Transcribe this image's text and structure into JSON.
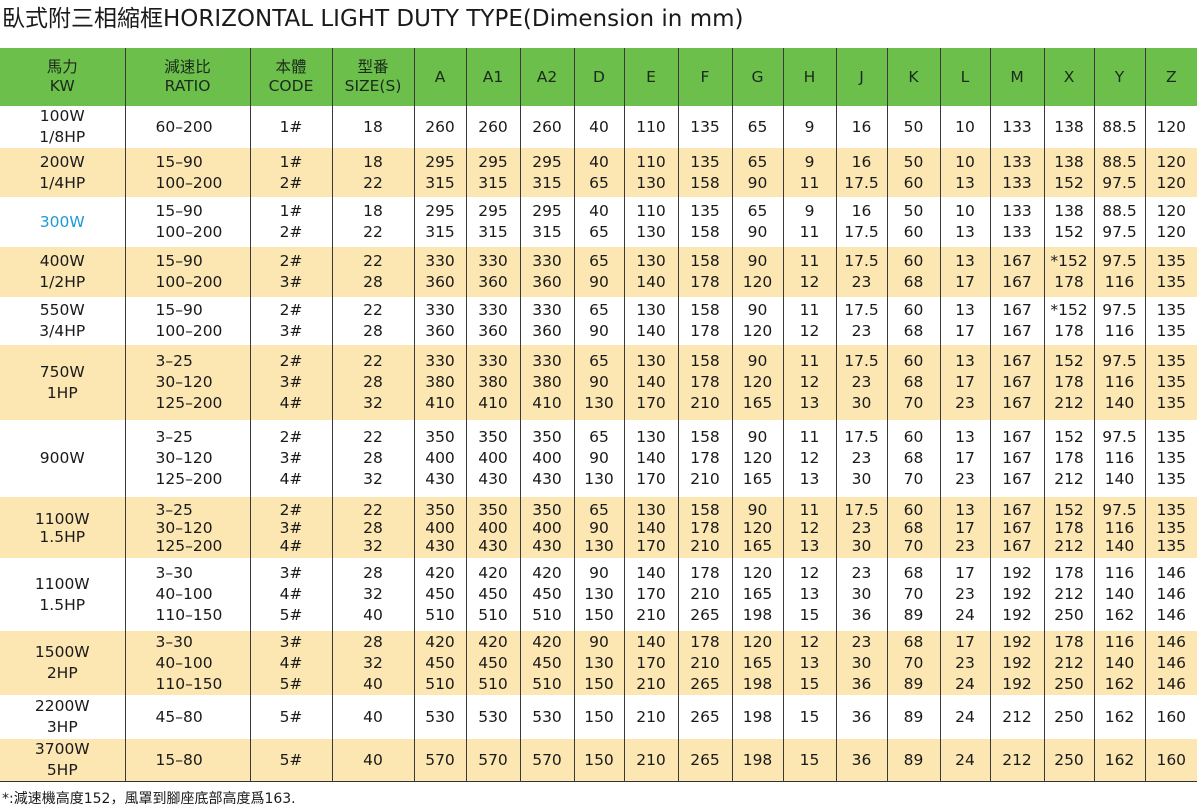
{
  "title": "臥式附三相縮框HORIZONTAL LIGHT DUTY TYPE(Dimension in mm)",
  "table": {
    "header": [
      [
        "馬力",
        "KW"
      ],
      [
        "減速比",
        "RATIO"
      ],
      [
        "本體",
        "CODE"
      ],
      [
        "型番",
        "SIZE(S)"
      ],
      [
        "A"
      ],
      [
        "A1"
      ],
      [
        "A2"
      ],
      [
        "D"
      ],
      [
        "E"
      ],
      [
        "F"
      ],
      [
        "G"
      ],
      [
        "H"
      ],
      [
        "J"
      ],
      [
        "K"
      ],
      [
        "L"
      ],
      [
        "M"
      ],
      [
        "X"
      ],
      [
        "Y"
      ],
      [
        "Z"
      ]
    ],
    "rows": [
      [
        [
          "100W",
          "1/8HP"
        ],
        [
          "60–200"
        ],
        [
          "1#"
        ],
        [
          "18"
        ],
        [
          "260"
        ],
        [
          "260"
        ],
        [
          "260"
        ],
        [
          "40"
        ],
        [
          "110"
        ],
        [
          "135"
        ],
        [
          "65"
        ],
        [
          "9"
        ],
        [
          "16"
        ],
        [
          "50"
        ],
        [
          "10"
        ],
        [
          "133"
        ],
        [
          "138"
        ],
        [
          "88.5"
        ],
        [
          "120"
        ]
      ],
      [
        [
          "200W",
          "1/4HP"
        ],
        [
          "15–90",
          "100–200"
        ],
        [
          "1#",
          "2#"
        ],
        [
          "18",
          "22"
        ],
        [
          "295",
          "315"
        ],
        [
          "295",
          "315"
        ],
        [
          "295",
          "315"
        ],
        [
          "40",
          "65"
        ],
        [
          "110",
          "130"
        ],
        [
          "135",
          "158"
        ],
        [
          "65",
          "90"
        ],
        [
          "9",
          "11"
        ],
        [
          "16",
          "17.5"
        ],
        [
          "50",
          "60"
        ],
        [
          "10",
          "13"
        ],
        [
          "133",
          "133"
        ],
        [
          "138",
          "152"
        ],
        [
          "88.5",
          "97.5"
        ],
        [
          "120",
          "120"
        ]
      ],
      [
        [
          "300W"
        ],
        [
          "15–90",
          "100–200"
        ],
        [
          "1#",
          "2#"
        ],
        [
          "18",
          "22"
        ],
        [
          "295",
          "315"
        ],
        [
          "295",
          "315"
        ],
        [
          "295",
          "315"
        ],
        [
          "40",
          "65"
        ],
        [
          "110",
          "130"
        ],
        [
          "135",
          "158"
        ],
        [
          "65",
          "90"
        ],
        [
          "9",
          "11"
        ],
        [
          "16",
          "17.5"
        ],
        [
          "50",
          "60"
        ],
        [
          "10",
          "13"
        ],
        [
          "133",
          "133"
        ],
        [
          "138",
          "152"
        ],
        [
          "88.5",
          "97.5"
        ],
        [
          "120",
          "120"
        ]
      ],
      [
        [
          "400W",
          "1/2HP"
        ],
        [
          "15–90",
          "100–200"
        ],
        [
          "2#",
          "3#"
        ],
        [
          "22",
          "28"
        ],
        [
          "330",
          "360"
        ],
        [
          "330",
          "360"
        ],
        [
          "330",
          "360"
        ],
        [
          "65",
          "90"
        ],
        [
          "130",
          "140"
        ],
        [
          "158",
          "178"
        ],
        [
          "90",
          "120"
        ],
        [
          "11",
          "12"
        ],
        [
          "17.5",
          "23"
        ],
        [
          "60",
          "68"
        ],
        [
          "13",
          "17"
        ],
        [
          "167",
          "167"
        ],
        [
          "*152",
          "178"
        ],
        [
          "97.5",
          "116"
        ],
        [
          "135",
          "135"
        ]
      ],
      [
        [
          "550W",
          "3/4HP"
        ],
        [
          "15–90",
          "100–200"
        ],
        [
          "2#",
          "3#"
        ],
        [
          "22",
          "28"
        ],
        [
          "330",
          "360"
        ],
        [
          "330",
          "360"
        ],
        [
          "330",
          "360"
        ],
        [
          "65",
          "90"
        ],
        [
          "130",
          "140"
        ],
        [
          "158",
          "178"
        ],
        [
          "90",
          "120"
        ],
        [
          "11",
          "12"
        ],
        [
          "17.5",
          "23"
        ],
        [
          "60",
          "68"
        ],
        [
          "13",
          "17"
        ],
        [
          "167",
          "167"
        ],
        [
          "*152",
          "178"
        ],
        [
          "97.5",
          "116"
        ],
        [
          "135",
          "135"
        ]
      ],
      [
        [
          "750W",
          "1HP"
        ],
        [
          "3–25",
          "30–120",
          "125–200"
        ],
        [
          "2#",
          "3#",
          "4#"
        ],
        [
          "22",
          "28",
          "32"
        ],
        [
          "330",
          "380",
          "410"
        ],
        [
          "330",
          "380",
          "410"
        ],
        [
          "330",
          "380",
          "410"
        ],
        [
          "65",
          "90",
          "130"
        ],
        [
          "130",
          "140",
          "170"
        ],
        [
          "158",
          "178",
          "210"
        ],
        [
          "90",
          "120",
          "165"
        ],
        [
          "11",
          "12",
          "13"
        ],
        [
          "17.5",
          "23",
          "30"
        ],
        [
          "60",
          "68",
          "70"
        ],
        [
          "13",
          "17",
          "23"
        ],
        [
          "167",
          "167",
          "167"
        ],
        [
          "152",
          "178",
          "212"
        ],
        [
          "97.5",
          "116",
          "140"
        ],
        [
          "135",
          "135",
          "135"
        ]
      ],
      [
        [
          "900W"
        ],
        [
          "3–25",
          "30–120",
          "125–200"
        ],
        [
          "2#",
          "3#",
          "4#"
        ],
        [
          "22",
          "28",
          "32"
        ],
        [
          "350",
          "400",
          "430"
        ],
        [
          "350",
          "400",
          "430"
        ],
        [
          "350",
          "400",
          "430"
        ],
        [
          "65",
          "90",
          "130"
        ],
        [
          "130",
          "140",
          "170"
        ],
        [
          "158",
          "178",
          "210"
        ],
        [
          "90",
          "120",
          "165"
        ],
        [
          "11",
          "12",
          "13"
        ],
        [
          "17.5",
          "23",
          "30"
        ],
        [
          "60",
          "68",
          "70"
        ],
        [
          "13",
          "17",
          "23"
        ],
        [
          "167",
          "167",
          "167"
        ],
        [
          "152",
          "178",
          "212"
        ],
        [
          "97.5",
          "116",
          "140"
        ],
        [
          "135",
          "135",
          "135"
        ]
      ],
      [
        [
          "1100W",
          "1.5HP"
        ],
        [
          "3–25",
          "30–120",
          "125–200"
        ],
        [
          "2#",
          "3#",
          "4#"
        ],
        [
          "22",
          "28",
          "32"
        ],
        [
          "350",
          "400",
          "430"
        ],
        [
          "350",
          "400",
          "430"
        ],
        [
          "350",
          "400",
          "430"
        ],
        [
          "65",
          "90",
          "130"
        ],
        [
          "130",
          "140",
          "170"
        ],
        [
          "158",
          "178",
          "210"
        ],
        [
          "90",
          "120",
          "165"
        ],
        [
          "11",
          "12",
          "13"
        ],
        [
          "17.5",
          "23",
          "30"
        ],
        [
          "60",
          "68",
          "70"
        ],
        [
          "13",
          "17",
          "23"
        ],
        [
          "167",
          "167",
          "167"
        ],
        [
          "152",
          "178",
          "212"
        ],
        [
          "97.5",
          "116",
          "140"
        ],
        [
          "135",
          "135",
          "135"
        ]
      ],
      [
        [
          "1100W",
          "1.5HP"
        ],
        [
          "3–30",
          "40–100",
          "110–150"
        ],
        [
          "3#",
          "4#",
          "5#"
        ],
        [
          "28",
          "32",
          "40"
        ],
        [
          "420",
          "450",
          "510"
        ],
        [
          "420",
          "450",
          "510"
        ],
        [
          "420",
          "450",
          "510"
        ],
        [
          "90",
          "130",
          "150"
        ],
        [
          "140",
          "170",
          "210"
        ],
        [
          "178",
          "210",
          "265"
        ],
        [
          "120",
          "165",
          "198"
        ],
        [
          "12",
          "13",
          "15"
        ],
        [
          "23",
          "30",
          "36"
        ],
        [
          "68",
          "70",
          "89"
        ],
        [
          "17",
          "23",
          "24"
        ],
        [
          "192",
          "192",
          "192"
        ],
        [
          "178",
          "212",
          "250"
        ],
        [
          "116",
          "140",
          "162"
        ],
        [
          "146",
          "146",
          "146"
        ]
      ],
      [
        [
          "1500W",
          "2HP"
        ],
        [
          "3–30",
          "40–100",
          "110–150"
        ],
        [
          "3#",
          "4#",
          "5#"
        ],
        [
          "28",
          "32",
          "40"
        ],
        [
          "420",
          "450",
          "510"
        ],
        [
          "420",
          "450",
          "510"
        ],
        [
          "420",
          "450",
          "510"
        ],
        [
          "90",
          "130",
          "150"
        ],
        [
          "140",
          "170",
          "210"
        ],
        [
          "178",
          "210",
          "265"
        ],
        [
          "120",
          "165",
          "198"
        ],
        [
          "12",
          "13",
          "15"
        ],
        [
          "23",
          "30",
          "36"
        ],
        [
          "68",
          "70",
          "89"
        ],
        [
          "17",
          "23",
          "24"
        ],
        [
          "192",
          "192",
          "192"
        ],
        [
          "178",
          "212",
          "250"
        ],
        [
          "116",
          "140",
          "162"
        ],
        [
          "146",
          "146",
          "146"
        ]
      ],
      [
        [
          "2200W",
          "3HP"
        ],
        [
          "45–80"
        ],
        [
          "5#"
        ],
        [
          "40"
        ],
        [
          "530"
        ],
        [
          "530"
        ],
        [
          "530"
        ],
        [
          "150"
        ],
        [
          "210"
        ],
        [
          "265"
        ],
        [
          "198"
        ],
        [
          "15"
        ],
        [
          "36"
        ],
        [
          "89"
        ],
        [
          "24"
        ],
        [
          "212"
        ],
        [
          "250"
        ],
        [
          "162"
        ],
        [
          "160"
        ]
      ],
      [
        [
          "3700W",
          "5HP"
        ],
        [
          "15–80"
        ],
        [
          "5#"
        ],
        [
          "40"
        ],
        [
          "570"
        ],
        [
          "570"
        ],
        [
          "570"
        ],
        [
          "150"
        ],
        [
          "210"
        ],
        [
          "265"
        ],
        [
          "198"
        ],
        [
          "15"
        ],
        [
          "36"
        ],
        [
          "89"
        ],
        [
          "24"
        ],
        [
          "212"
        ],
        [
          "250"
        ],
        [
          "162"
        ],
        [
          "160"
        ]
      ]
    ]
  },
  "footnote": "*:減速機高度152，風罩到腳座底部高度爲163."
}
